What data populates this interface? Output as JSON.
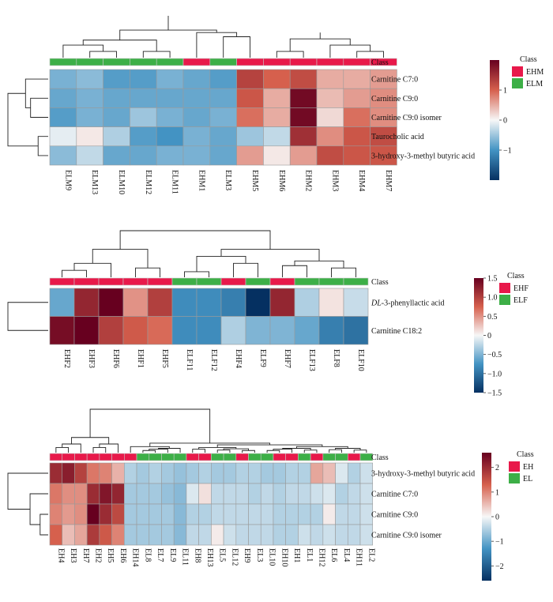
{
  "chart_data": [
    {
      "type": "heatmap",
      "row_labels": [
        "Carnitine C7:0",
        "Carnitine C9:0",
        "Carnitine C9:0 isomer",
        "Taurocholic acid",
        "3-hydroxy-3-methyl butyric acid"
      ],
      "col_labels": [
        "ELM9",
        "ELM13",
        "ELM10",
        "ELM12",
        "ELM11",
        "EHM1",
        "ELM3",
        "EHM5",
        "EHM6",
        "EHM2",
        "EHM3",
        "EHM4",
        "EHM7"
      ],
      "class_annotation": [
        "ELM",
        "ELM",
        "ELM",
        "ELM",
        "ELM",
        "EHM",
        "ELM",
        "EHM",
        "EHM",
        "EHM",
        "EHM",
        "EHM",
        "EHM"
      ],
      "values": [
        [
          -0.7,
          -0.6,
          -0.9,
          -0.9,
          -0.7,
          -0.8,
          -0.9,
          1.3,
          1.0,
          1.2,
          0.5,
          0.5,
          0.6
        ],
        [
          -0.8,
          -0.7,
          -0.8,
          -0.8,
          -0.8,
          -0.8,
          -0.8,
          1.1,
          0.5,
          1.9,
          0.4,
          0.6,
          0.7
        ],
        [
          -0.9,
          -0.7,
          -0.8,
          -0.5,
          -0.7,
          -0.8,
          -0.7,
          0.9,
          0.5,
          1.9,
          0.2,
          0.9,
          0.7
        ],
        [
          -0.1,
          0.1,
          -0.4,
          -0.9,
          -1.0,
          -0.7,
          -0.8,
          -0.5,
          -0.3,
          1.5,
          0.7,
          1.1,
          1.2
        ],
        [
          -0.6,
          -0.3,
          -0.8,
          -0.8,
          -0.7,
          -0.7,
          -0.8,
          0.6,
          0.1,
          0.6,
          1.2,
          1.1,
          1.1
        ]
      ],
      "row_dendrogram": [
        [
          3,
          4,
          0.2
        ],
        [
          1,
          2,
          0.35
        ],
        [
          0,
          6,
          0.45
        ],
        [
          7,
          5,
          0.8
        ]
      ],
      "col_dendrogram": [
        [
          1,
          2,
          0.15
        ],
        [
          3,
          4,
          0.15
        ],
        [
          0,
          13,
          0.3
        ],
        [
          14,
          15,
          0.42
        ],
        [
          6,
          7,
          0.5
        ],
        [
          5,
          17,
          0.6
        ],
        [
          16,
          18,
          0.66
        ],
        [
          8,
          9,
          0.15
        ],
        [
          11,
          12,
          0.15
        ],
        [
          10,
          21,
          0.3
        ],
        [
          20,
          22,
          0.45
        ],
        [
          23,
          24,
          0.6
        ],
        [
          19,
          25,
          1.0
        ]
      ],
      "color_scale": {
        "min": -2,
        "max": 2,
        "ticks": [
          1,
          0,
          -1
        ],
        "tick_labels": [
          "1",
          "0",
          "−1"
        ]
      },
      "legend_title": "Class",
      "class_legend": [
        {
          "name": "EHM",
          "color": "#e8194a"
        },
        {
          "name": "ELM",
          "color": "#3daf47"
        }
      ],
      "class_row_label": "Class"
    },
    {
      "type": "heatmap",
      "row_labels": [
        "DL-3-phenyllactic acid",
        "Carnitine C18:2"
      ],
      "row_label_italic_prefix": [
        "DL",
        ""
      ],
      "col_labels": [
        "EHF2",
        "EHF3",
        "EHF6",
        "EHF1",
        "EHF5",
        "ELF11",
        "ELF12",
        "EHF4",
        "ELF9",
        "EHF7",
        "ELF13",
        "ELF8",
        "ELF10"
      ],
      "class_annotation": [
        "EHF",
        "EHF",
        "EHF",
        "EHF",
        "EHF",
        "ELF",
        "ELF",
        "EHF",
        "ELF",
        "EHF",
        "ELF",
        "ELF",
        "ELF"
      ],
      "values": [
        [
          -0.6,
          1.2,
          1.5,
          0.5,
          1.0,
          -0.8,
          -0.8,
          -0.9,
          -1.5,
          1.2,
          -0.3,
          0.1,
          -0.2
        ],
        [
          1.4,
          1.5,
          1.0,
          0.8,
          0.7,
          -0.8,
          -0.8,
          -0.3,
          -0.5,
          -0.5,
          -0.6,
          -0.9,
          -1.0
        ]
      ],
      "row_dendrogram": [
        [
          0,
          1,
          1.0
        ]
      ],
      "col_dendrogram": [
        [
          0,
          1,
          0.15
        ],
        [
          13,
          2,
          0.3
        ],
        [
          3,
          4,
          0.2
        ],
        [
          14,
          15,
          0.6
        ],
        [
          5,
          6,
          0.12
        ],
        [
          7,
          8,
          0.3
        ],
        [
          17,
          18,
          0.45
        ],
        [
          9,
          10,
          0.25
        ],
        [
          11,
          12,
          0.2
        ],
        [
          20,
          21,
          0.35
        ],
        [
          19,
          22,
          0.6
        ],
        [
          16,
          23,
          1.0
        ]
      ],
      "color_scale": {
        "min": -1.5,
        "max": 1.5,
        "ticks": [
          1.5,
          1.0,
          0.5,
          0,
          -0.5,
          -1.0,
          -1.5
        ],
        "tick_labels": [
          "1.5",
          "1.0",
          "0.5",
          "0",
          "−0.5",
          "−1.0",
          "−1.5"
        ]
      },
      "legend_title": "Class",
      "class_legend": [
        {
          "name": "EHF",
          "color": "#e8194a"
        },
        {
          "name": "ELF",
          "color": "#3daf47"
        }
      ],
      "class_row_label": "Class"
    },
    {
      "type": "heatmap",
      "row_labels": [
        "3-hydroxy-3-methyl butyric acid",
        "Carnitine C7:0",
        "Carnitine C9:0",
        "Carnitine C9:0 isomer"
      ],
      "col_labels": [
        "EH4",
        "EH3",
        "EH7",
        "EH2",
        "EH5",
        "EH6",
        "EH14",
        "EL8",
        "EL7",
        "EL9",
        "EL11",
        "EH8",
        "EH13",
        "EL5",
        "EL12",
        "EH9",
        "EL3",
        "EL10",
        "EH10",
        "EH1",
        "EL1",
        "EH12",
        "EL6",
        "EL4",
        "EH11",
        "EL2"
      ],
      "class_annotation": [
        "EH",
        "EH",
        "EH",
        "EH",
        "EH",
        "EH",
        "EH",
        "EL",
        "EL",
        "EL",
        "EL",
        "EH",
        "EH",
        "EL",
        "EL",
        "EH",
        "EL",
        "EL",
        "EH",
        "EH",
        "EL",
        "EH",
        "EL",
        "EL",
        "EH",
        "EL"
      ],
      "values": [
        [
          2.0,
          2.2,
          1.7,
          1.1,
          1.0,
          0.6,
          -0.5,
          -0.6,
          -0.5,
          -0.6,
          -0.7,
          -0.6,
          -0.5,
          -0.6,
          -0.6,
          -0.5,
          -0.5,
          -0.6,
          -0.6,
          -0.5,
          -0.5,
          0.7,
          0.5,
          -0.2,
          -0.5,
          -0.3
        ],
        [
          1.1,
          0.9,
          0.9,
          2.0,
          2.3,
          2.1,
          -0.6,
          -0.6,
          -0.6,
          -0.7,
          -0.8,
          -0.2,
          0.2,
          -0.4,
          -0.4,
          -0.4,
          -0.5,
          -0.4,
          -0.5,
          -0.4,
          -0.4,
          -0.3,
          -0.2,
          -0.5,
          -0.4,
          -0.3
        ],
        [
          1.0,
          0.8,
          0.9,
          2.6,
          2.0,
          1.6,
          -0.6,
          -0.6,
          -0.6,
          -0.6,
          -0.8,
          -0.5,
          -0.5,
          -0.4,
          -0.4,
          -0.4,
          -0.4,
          -0.4,
          -0.5,
          -0.5,
          -0.5,
          -0.5,
          0.1,
          -0.4,
          -0.4,
          -0.3
        ],
        [
          1.3,
          0.5,
          0.7,
          1.8,
          1.4,
          1.0,
          -0.6,
          -0.6,
          -0.6,
          -0.6,
          -0.8,
          -0.4,
          -0.4,
          0.1,
          -0.3,
          -0.4,
          -0.4,
          -0.4,
          -0.5,
          -0.5,
          -0.3,
          -0.4,
          -0.3,
          -0.4,
          -0.4,
          -0.3
        ]
      ],
      "row_dendrogram": [
        [
          2,
          3,
          0.2
        ],
        [
          1,
          4,
          0.45
        ],
        [
          0,
          5,
          1.0
        ]
      ],
      "col_dendrogram": [
        [
          0,
          1,
          0.12
        ],
        [
          26,
          2,
          0.2
        ],
        [
          3,
          4,
          0.12
        ],
        [
          28,
          5,
          0.2
        ],
        [
          27,
          29,
          0.35
        ],
        [
          7,
          8,
          0.05
        ],
        [
          31,
          9,
          0.08
        ],
        [
          32,
          10,
          0.1
        ],
        [
          6,
          33,
          0.14
        ],
        [
          11,
          12,
          0.08
        ],
        [
          13,
          14,
          0.06
        ],
        [
          15,
          16,
          0.05
        ],
        [
          36,
          37,
          0.09
        ],
        [
          35,
          38,
          0.12
        ],
        [
          17,
          18,
          0.05
        ],
        [
          40,
          19,
          0.08
        ],
        [
          20,
          21,
          0.06
        ],
        [
          41,
          42,
          0.1
        ],
        [
          22,
          23,
          0.07
        ],
        [
          24,
          25,
          0.06
        ],
        [
          44,
          45,
          0.1
        ],
        [
          43,
          46,
          0.14
        ],
        [
          39,
          47,
          0.18
        ],
        [
          34,
          48,
          0.22
        ],
        [
          30,
          49,
          1.0
        ]
      ],
      "color_scale": {
        "min": -2.6,
        "max": 2.6,
        "ticks": [
          2,
          1,
          0,
          -1,
          -2
        ],
        "tick_labels": [
          "2",
          "1",
          "0",
          "−1",
          "−2"
        ]
      },
      "legend_title": "Class",
      "class_legend": [
        {
          "name": "EH",
          "color": "#e8194a"
        },
        {
          "name": "EL",
          "color": "#3daf47"
        }
      ],
      "class_row_label": "Class"
    }
  ]
}
